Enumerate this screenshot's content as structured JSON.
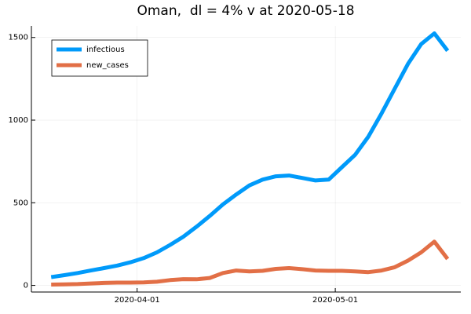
{
  "chart_data": {
    "type": "line",
    "title": "Oman,  dl = 4% v at 2020-05-18",
    "x": [
      "2020-03-19",
      "2020-03-21",
      "2020-03-23",
      "2020-03-25",
      "2020-03-27",
      "2020-03-29",
      "2020-03-31",
      "2020-04-02",
      "2020-04-04",
      "2020-04-06",
      "2020-04-08",
      "2020-04-10",
      "2020-04-12",
      "2020-04-14",
      "2020-04-16",
      "2020-04-18",
      "2020-04-20",
      "2020-04-22",
      "2020-04-24",
      "2020-04-26",
      "2020-04-28",
      "2020-04-30",
      "2020-05-02",
      "2020-05-04",
      "2020-05-06",
      "2020-05-08",
      "2020-05-10",
      "2020-05-12",
      "2020-05-14",
      "2020-05-16",
      "2020-05-18"
    ],
    "series": [
      {
        "name": "infectious",
        "color": "#009afa",
        "values": [
          50,
          62,
          75,
          90,
          105,
          120,
          140,
          165,
          200,
          245,
          295,
          355,
          420,
          490,
          550,
          605,
          640,
          660,
          665,
          650,
          635,
          640,
          715,
          790,
          900,
          1040,
          1190,
          1340,
          1460,
          1525,
          1420
        ]
      },
      {
        "name": "new_cases",
        "color": "#e26f46",
        "values": [
          5,
          6,
          8,
          12,
          15,
          17,
          17,
          18,
          22,
          32,
          38,
          37,
          45,
          75,
          90,
          85,
          88,
          100,
          105,
          98,
          90,
          88,
          88,
          85,
          80,
          90,
          110,
          150,
          200,
          265,
          160
        ]
      }
    ],
    "xlim": [
      "2020-03-16",
      "2020-05-20"
    ],
    "xticks": [
      "2020-04-01",
      "2020-05-01"
    ],
    "ylim": [
      -40,
      1570
    ],
    "yticks": [
      0,
      500,
      1000,
      1500
    ],
    "grid": true,
    "legend": "top-left"
  }
}
